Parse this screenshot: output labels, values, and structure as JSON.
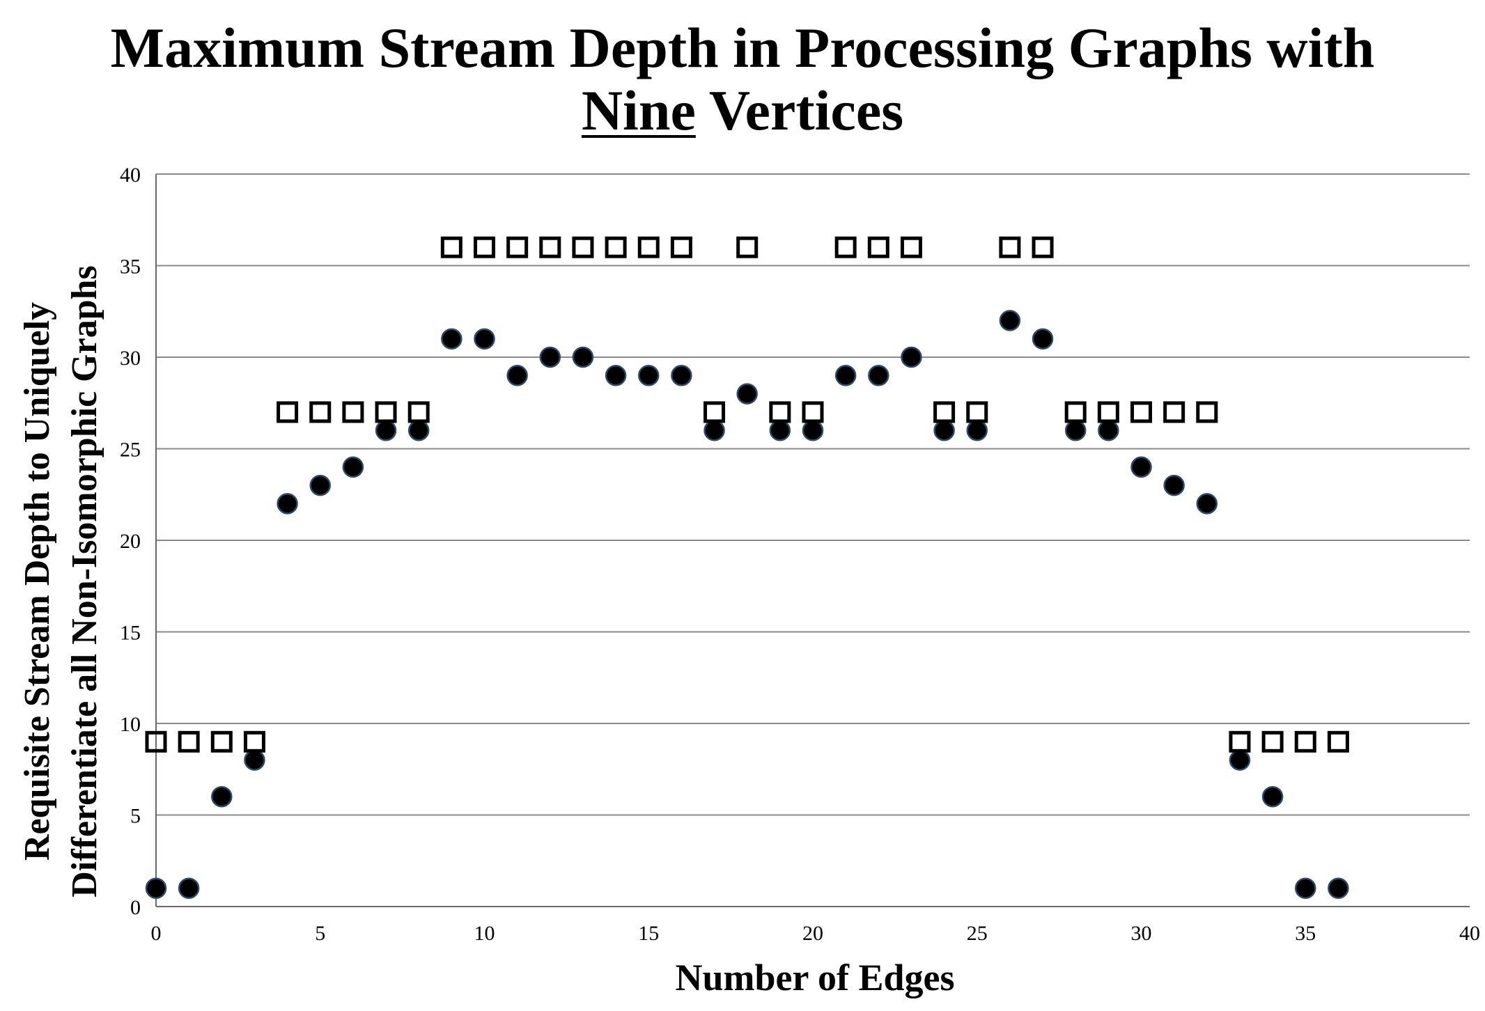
{
  "chart_data": {
    "type": "scatter",
    "title": {
      "line1": "Maximum Stream Depth in Processing Graphs with",
      "line2_underlined": "Nine",
      "line2_rest": " Vertices"
    },
    "xlabel": "Number of Edges",
    "ylabel_lines": [
      "Requisite Stream Depth to Uniquely",
      "Differentiate all Non-Isomorphic Graphs"
    ],
    "xlim": [
      0,
      40
    ],
    "ylim": [
      0,
      40
    ],
    "xticks": [
      0,
      5,
      10,
      15,
      20,
      25,
      30,
      35,
      40
    ],
    "yticks": [
      0,
      5,
      10,
      15,
      20,
      25,
      30,
      35,
      40
    ],
    "grid": "horizontal",
    "series": [
      {
        "marker": "square-open",
        "color": "#000000",
        "points": [
          [
            0,
            9
          ],
          [
            1,
            9
          ],
          [
            2,
            9
          ],
          [
            3,
            9
          ],
          [
            4,
            27
          ],
          [
            5,
            27
          ],
          [
            6,
            27
          ],
          [
            7,
            27
          ],
          [
            8,
            27
          ],
          [
            9,
            36
          ],
          [
            10,
            36
          ],
          [
            11,
            36
          ],
          [
            12,
            36
          ],
          [
            13,
            36
          ],
          [
            14,
            36
          ],
          [
            15,
            36
          ],
          [
            16,
            36
          ],
          [
            17,
            27
          ],
          [
            18,
            36
          ],
          [
            19,
            27
          ],
          [
            20,
            27
          ],
          [
            21,
            36
          ],
          [
            22,
            36
          ],
          [
            23,
            36
          ],
          [
            24,
            27
          ],
          [
            25,
            27
          ],
          [
            26,
            36
          ],
          [
            27,
            36
          ],
          [
            28,
            27
          ],
          [
            29,
            27
          ],
          [
            30,
            27
          ],
          [
            31,
            27
          ],
          [
            32,
            27
          ],
          [
            33,
            9
          ],
          [
            34,
            9
          ],
          [
            35,
            9
          ],
          [
            36,
            9
          ]
        ]
      },
      {
        "marker": "circle-filled",
        "color": "#000000",
        "edge_color": "#2e4a6b",
        "points": [
          [
            0,
            1
          ],
          [
            1,
            1
          ],
          [
            2,
            6
          ],
          [
            3,
            8
          ],
          [
            4,
            22
          ],
          [
            5,
            23
          ],
          [
            6,
            24
          ],
          [
            7,
            26
          ],
          [
            8,
            26
          ],
          [
            9,
            31
          ],
          [
            10,
            31
          ],
          [
            11,
            29
          ],
          [
            12,
            30
          ],
          [
            13,
            30
          ],
          [
            14,
            29
          ],
          [
            15,
            29
          ],
          [
            16,
            29
          ],
          [
            17,
            26
          ],
          [
            18,
            28
          ],
          [
            19,
            26
          ],
          [
            20,
            26
          ],
          [
            21,
            29
          ],
          [
            22,
            29
          ],
          [
            23,
            30
          ],
          [
            24,
            26
          ],
          [
            25,
            26
          ],
          [
            26,
            32
          ],
          [
            27,
            31
          ],
          [
            28,
            26
          ],
          [
            29,
            26
          ],
          [
            30,
            24
          ],
          [
            31,
            23
          ],
          [
            32,
            22
          ],
          [
            33,
            8
          ],
          [
            34,
            6
          ],
          [
            35,
            1
          ],
          [
            36,
            1
          ]
        ]
      }
    ]
  }
}
